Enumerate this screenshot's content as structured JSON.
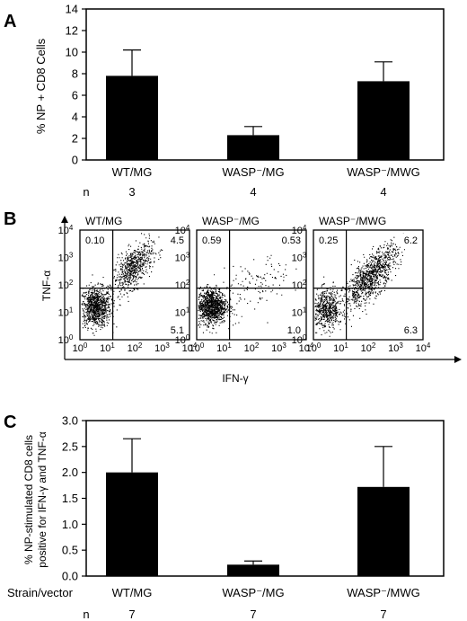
{
  "panel_letters": [
    "A",
    "B",
    "C"
  ],
  "chart_data": [
    {
      "type": "bar",
      "panel": "A",
      "ylabel": "% NP + CD8 Cells",
      "ylim": [
        0,
        14
      ],
      "yticks": [
        "0",
        "2",
        "4",
        "6",
        "8",
        "10",
        "12",
        "14"
      ],
      "categories": [
        "WT/MG",
        "WASP⁻/MG",
        "WASP⁻/MWG"
      ],
      "values": [
        7.8,
        2.3,
        7.3
      ],
      "errors": [
        2.4,
        0.8,
        1.8
      ],
      "row_label": "n",
      "n": [
        "3",
        "4",
        "4"
      ]
    },
    {
      "type": "scatter",
      "panel": "B",
      "ylabel": "TNF-α",
      "xlabel": "IFN-γ",
      "axis_ticks": [
        {
          "base": "10",
          "exp": "0"
        },
        {
          "base": "10",
          "exp": "1"
        },
        {
          "base": "10",
          "exp": "2"
        },
        {
          "base": "10",
          "exp": "3"
        },
        {
          "base": "10",
          "exp": "4"
        }
      ],
      "plots": [
        {
          "title": "WT/MG",
          "quadrants": {
            "ul": "0.10",
            "ur": "4.5",
            "lr": "5.1"
          }
        },
        {
          "title": "WASP⁻/MG",
          "quadrants": {
            "ul": "0.59",
            "ur": "0.53",
            "lr": "1.0"
          }
        },
        {
          "title": "WASP⁻/MWG",
          "quadrants": {
            "ul": "0.25",
            "ur": "6.2",
            "lr": "6.3"
          }
        }
      ]
    },
    {
      "type": "bar",
      "panel": "C",
      "ylabel_lines": [
        "% NP-stimulated CD8 cells",
        "positive for IFN-γ and TNF-α"
      ],
      "ylim": [
        0,
        3.0
      ],
      "yticks": [
        "0.0",
        "0.5",
        "1.0",
        "1.5",
        "2.0",
        "2.5",
        "3.0"
      ],
      "categories": [
        "WT/MG",
        "WASP⁻/MG",
        "WASP⁻/MWG"
      ],
      "values": [
        2.0,
        0.22,
        1.72
      ],
      "errors": [
        0.65,
        0.07,
        0.78
      ],
      "strain_label": "Strain/vector",
      "row_label": "n",
      "n": [
        "7",
        "7",
        "7"
      ]
    }
  ]
}
